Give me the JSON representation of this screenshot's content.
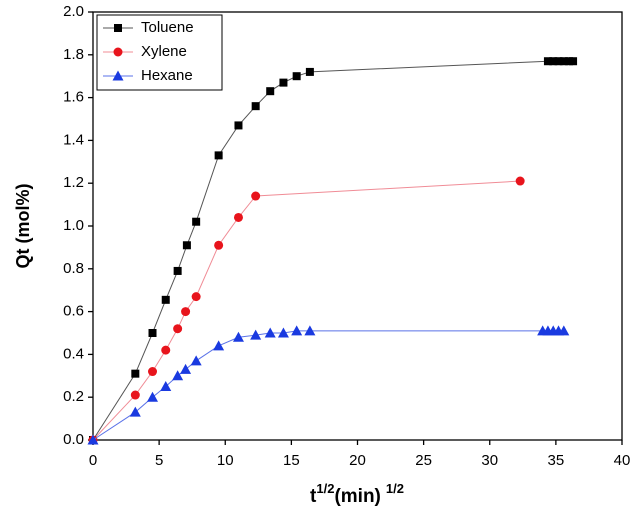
{
  "chart_data": {
    "type": "line",
    "xlabel": {
      "base": "t",
      "sup": "1/2",
      "unit": "(min)",
      "unit_sup": "1/2"
    },
    "ylabel": "Qt (mol%)",
    "xlim": [
      0,
      40
    ],
    "xticks": [
      0,
      5,
      10,
      15,
      20,
      25,
      30,
      35,
      40
    ],
    "ylim": [
      0,
      2.0
    ],
    "yticks": [
      {
        "value": 0,
        "label": "0.0"
      },
      0.2,
      0.4,
      0.6,
      0.8,
      {
        "value": 1,
        "label": "1.0"
      },
      1.2,
      1.4,
      1.6,
      1.8,
      {
        "value": 2,
        "label": "2.0"
      }
    ],
    "legend": "top-left",
    "series": [
      {
        "name": "Toluene",
        "color": "#000000",
        "line_color": "#555555",
        "marker": "square",
        "x": [
          0,
          3.2,
          4.5,
          5.5,
          6.4,
          7.1,
          7.8,
          9.5,
          11.0,
          12.3,
          13.4,
          14.4,
          15.4,
          16.4,
          34.4,
          34.8,
          35.2,
          35.6,
          36.0,
          36.3
        ],
        "values": [
          0,
          0.31,
          0.5,
          0.655,
          0.79,
          0.91,
          1.02,
          1.33,
          1.47,
          1.56,
          1.63,
          1.67,
          1.7,
          1.72,
          1.77,
          1.77,
          1.77,
          1.77,
          1.77,
          1.77
        ]
      },
      {
        "name": "Xylene",
        "color": "#e8141c",
        "line_color": "#f08c96",
        "marker": "circle",
        "x": [
          0,
          3.2,
          4.5,
          5.5,
          6.4,
          7.0,
          7.8,
          9.5,
          11.0,
          12.3,
          32.3
        ],
        "values": [
          0,
          0.21,
          0.32,
          0.42,
          0.52,
          0.6,
          0.67,
          0.91,
          1.04,
          1.14,
          1.21
        ]
      },
      {
        "name": "Hexane",
        "color": "#1a3ae0",
        "line_color": "#5a72e8",
        "marker": "triangle",
        "x": [
          0,
          3.2,
          4.5,
          5.5,
          6.4,
          7.0,
          7.8,
          9.5,
          11.0,
          12.3,
          13.4,
          14.4,
          15.4,
          16.4,
          34.0,
          34.4,
          34.8,
          35.2,
          35.6
        ],
        "values": [
          0,
          0.13,
          0.2,
          0.25,
          0.3,
          0.33,
          0.37,
          0.44,
          0.48,
          0.49,
          0.5,
          0.5,
          0.51,
          0.51,
          0.51,
          0.51,
          0.51,
          0.51,
          0.51
        ]
      }
    ]
  }
}
